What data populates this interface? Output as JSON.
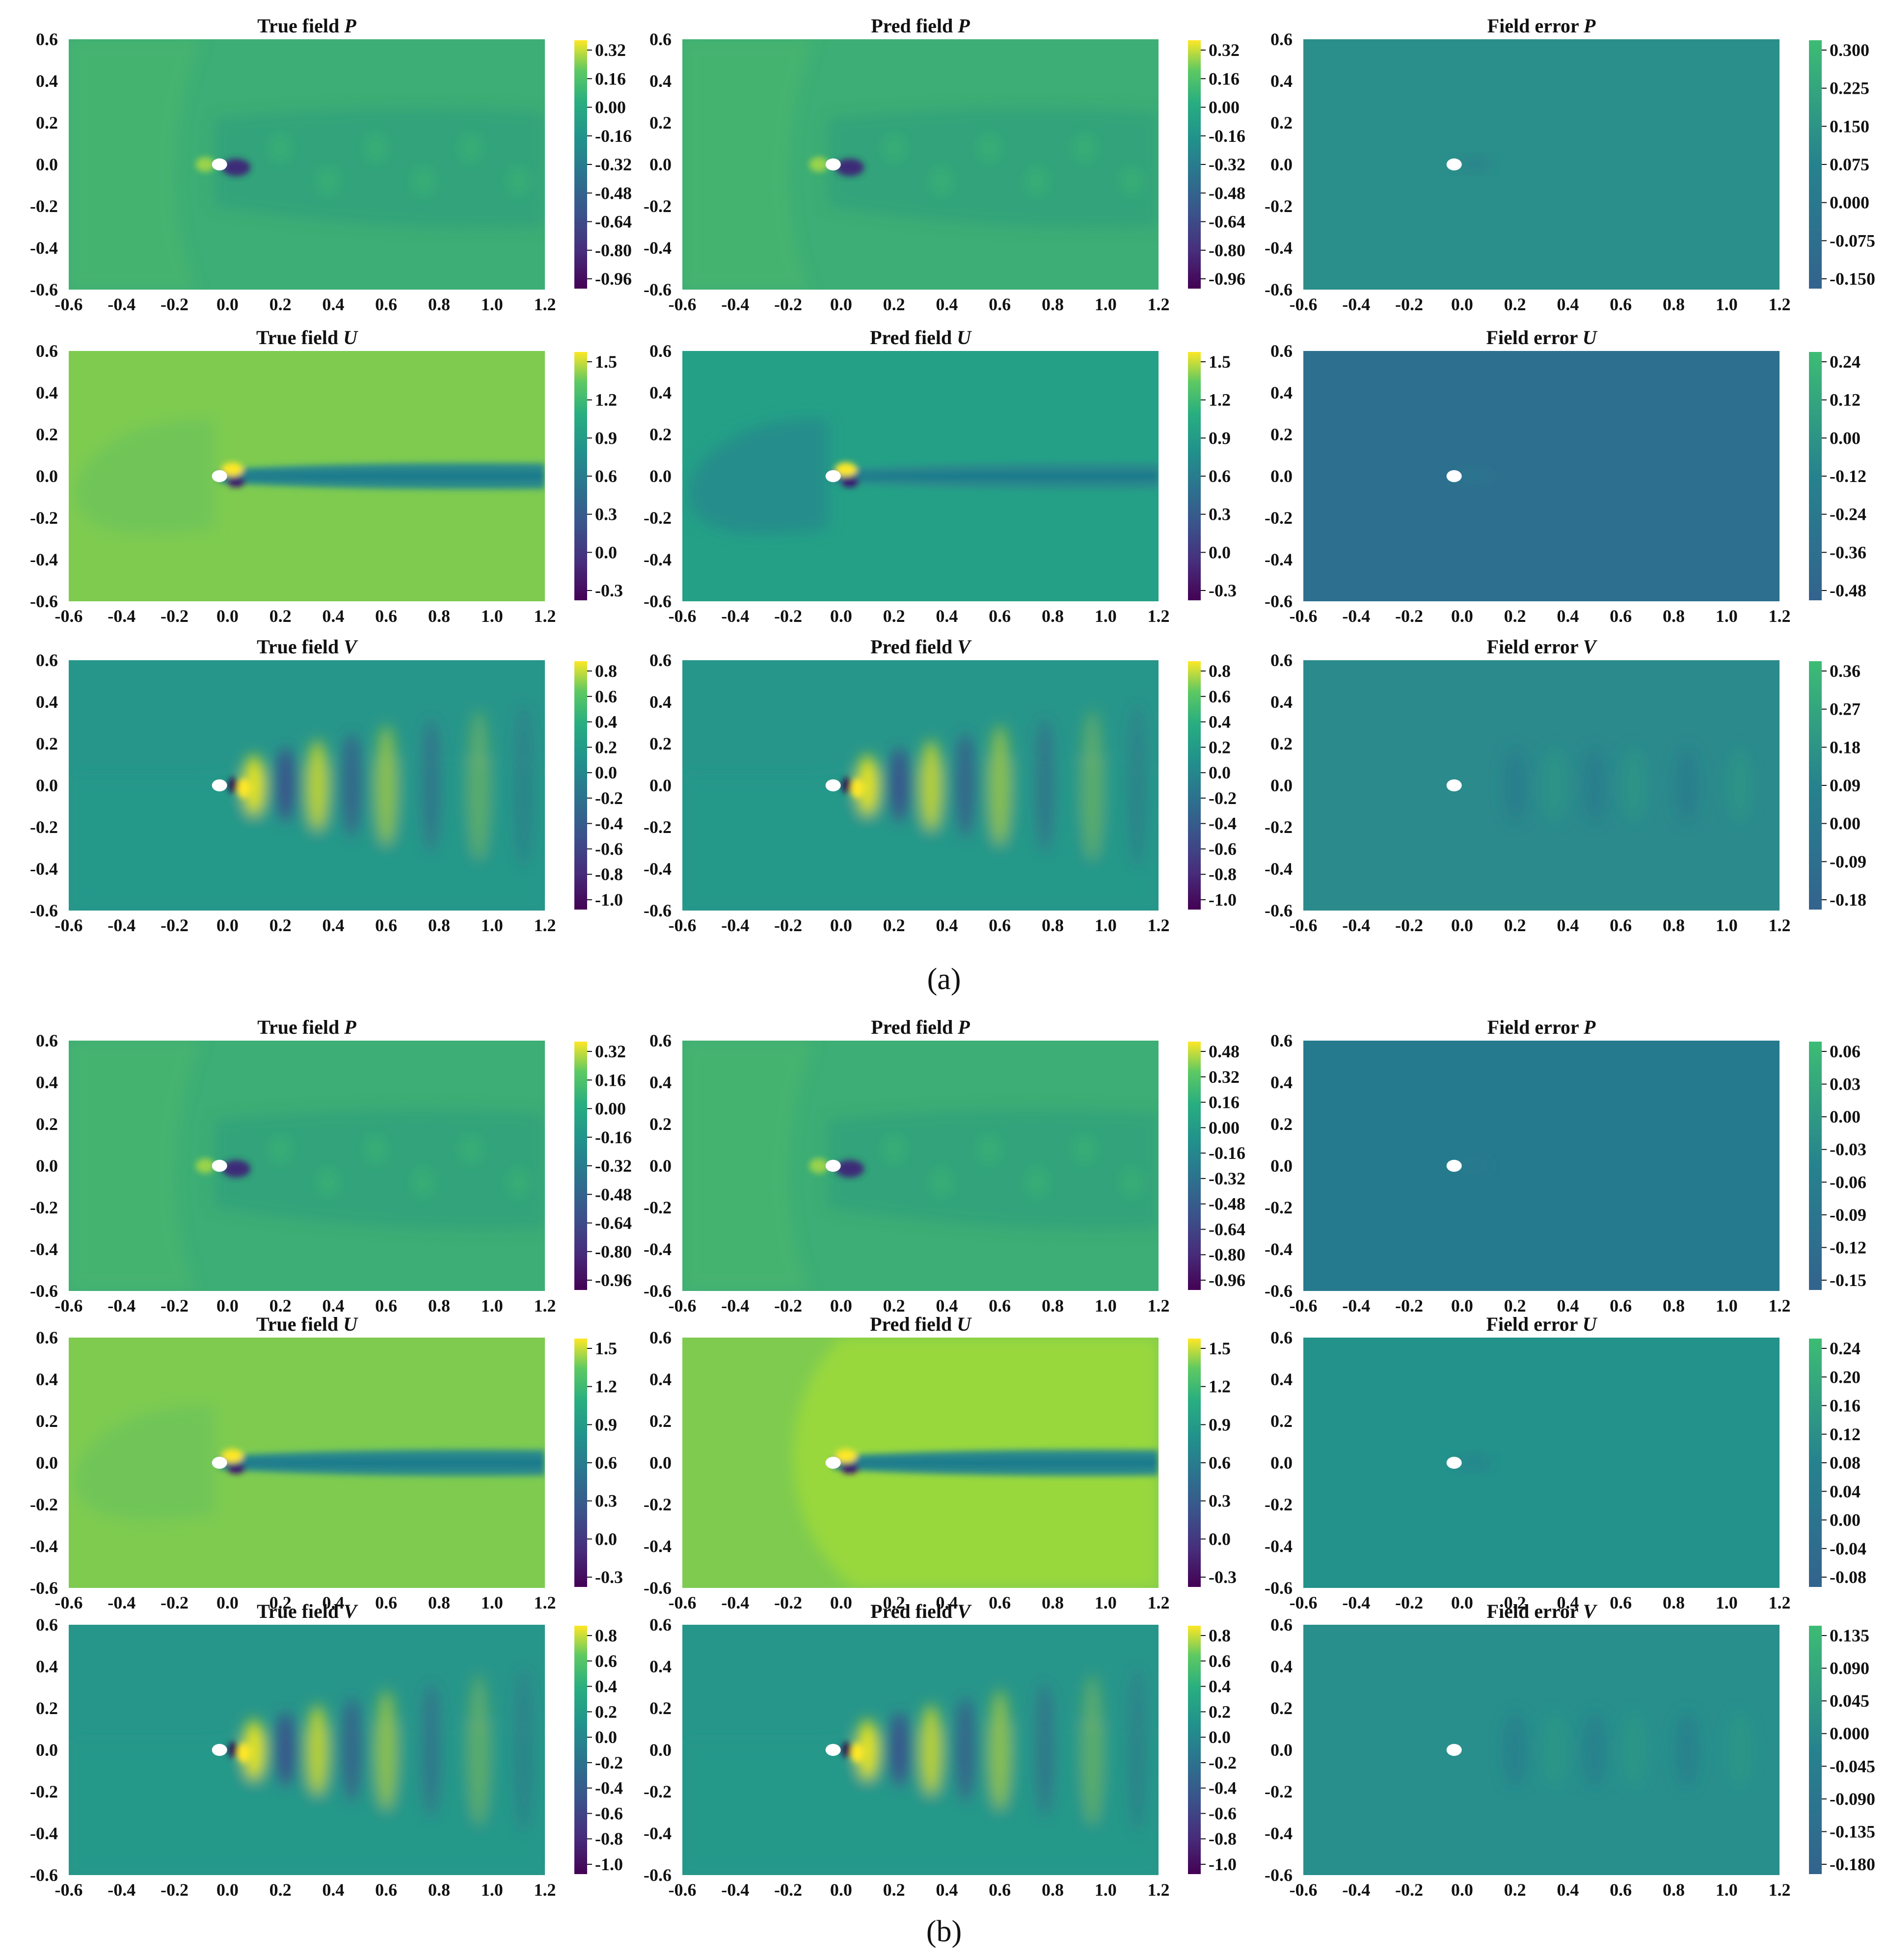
{
  "figure": {
    "part_labels": [
      "(a)",
      "(b)"
    ],
    "colors": {
      "cylinder": "#ffffff",
      "frame": "#111111"
    }
  },
  "chart_data": [
    {
      "type": "heatmap",
      "part": "a",
      "title": "True field",
      "variable": "P",
      "xticks": [
        "-0.6",
        "-0.4",
        "-0.2",
        "0.0",
        "0.2",
        "0.4",
        "0.6",
        "0.8",
        "1.0",
        "1.2"
      ],
      "yticks": [
        "0.6",
        "0.4",
        "0.2",
        "0.0",
        "-0.2",
        "-0.4",
        "-0.6"
      ],
      "xlim": [
        -0.6,
        1.2
      ],
      "ylim": [
        -0.6,
        0.6
      ],
      "colorbar_ticks": [
        "0.32",
        "0.16",
        "0.00",
        "-0.16",
        "-0.32",
        "-0.48",
        "-0.64",
        "-0.80",
        "-0.96"
      ],
      "colormap": "viridis",
      "background": "#3dae75",
      "pattern": "vortex_p"
    },
    {
      "type": "heatmap",
      "part": "a",
      "title": "Pred field",
      "variable": "P",
      "xticks": [
        "-0.6",
        "-0.4",
        "-0.2",
        "0.0",
        "0.2",
        "0.4",
        "0.6",
        "0.8",
        "1.0",
        "1.2"
      ],
      "yticks": [
        "0.6",
        "0.4",
        "0.2",
        "0.0",
        "-0.2",
        "-0.4",
        "-0.6"
      ],
      "xlim": [
        -0.6,
        1.2
      ],
      "ylim": [
        -0.6,
        0.6
      ],
      "colorbar_ticks": [
        "0.32",
        "0.16",
        "0.00",
        "-0.16",
        "-0.32",
        "-0.48",
        "-0.64",
        "-0.80",
        "-0.96"
      ],
      "colormap": "viridis",
      "background": "#3dae75",
      "pattern": "vortex_p"
    },
    {
      "type": "heatmap",
      "part": "a",
      "title": "Field error",
      "variable": "P",
      "xticks": [
        "-0.6",
        "-0.4",
        "-0.2",
        "0.0",
        "0.2",
        "0.4",
        "0.6",
        "0.8",
        "1.0",
        "1.2"
      ],
      "yticks": [
        "0.6",
        "0.4",
        "0.2",
        "0.0",
        "-0.2",
        "-0.4",
        "-0.6"
      ],
      "xlim": [
        -0.6,
        1.2
      ],
      "ylim": [
        -0.6,
        0.6
      ],
      "colorbar_ticks": [
        "0.300",
        "0.225",
        "0.150",
        "0.075",
        "0.000",
        "-0.075",
        "-0.150"
      ],
      "colormap": "error",
      "background": "#2a8f8a",
      "pattern": "error_small"
    },
    {
      "type": "heatmap",
      "part": "a",
      "title": "True field",
      "variable": "U",
      "xticks": [
        "-0.6",
        "-0.4",
        "-0.2",
        "0.0",
        "0.2",
        "0.4",
        "0.6",
        "0.8",
        "1.0",
        "1.2"
      ],
      "yticks": [
        "0.6",
        "0.4",
        "0.2",
        "0.0",
        "-0.2",
        "-0.4",
        "-0.6"
      ],
      "xlim": [
        -0.6,
        1.2
      ],
      "ylim": [
        -0.6,
        0.6
      ],
      "colorbar_ticks": [
        "1.5",
        "1.2",
        "0.9",
        "0.6",
        "0.3",
        "0.0",
        "-0.3"
      ],
      "colormap": "viridis",
      "background": "#7ecb50",
      "pattern": "wake_u"
    },
    {
      "type": "heatmap",
      "part": "a",
      "title": "Pred field",
      "variable": "U",
      "xticks": [
        "-0.6",
        "-0.4",
        "-0.2",
        "0.0",
        "0.2",
        "0.4",
        "0.6",
        "0.8",
        "1.0",
        "1.2"
      ],
      "yticks": [
        "0.6",
        "0.4",
        "0.2",
        "0.0",
        "-0.2",
        "-0.4",
        "-0.6"
      ],
      "xlim": [
        -0.6,
        1.2
      ],
      "ylim": [
        -0.6,
        0.6
      ],
      "colorbar_ticks": [
        "1.5",
        "1.2",
        "0.9",
        "0.6",
        "0.3",
        "0.0",
        "-0.3"
      ],
      "colormap": "viridis",
      "background": "#24a086",
      "pattern": "wake_u_pred"
    },
    {
      "type": "heatmap",
      "part": "a",
      "title": "Field error",
      "variable": "U",
      "xticks": [
        "-0.6",
        "-0.4",
        "-0.2",
        "0.0",
        "0.2",
        "0.4",
        "0.6",
        "0.8",
        "1.0",
        "1.2"
      ],
      "yticks": [
        "0.6",
        "0.4",
        "0.2",
        "0.0",
        "-0.2",
        "-0.4",
        "-0.6"
      ],
      "xlim": [
        -0.6,
        1.2
      ],
      "ylim": [
        -0.6,
        0.6
      ],
      "colorbar_ticks": [
        "0.24",
        "0.12",
        "0.00",
        "-0.12",
        "-0.24",
        "-0.36",
        "-0.48"
      ],
      "colormap": "error",
      "background": "#2d6f8e",
      "pattern": "error_small"
    },
    {
      "type": "heatmap",
      "part": "a",
      "title": "True field",
      "variable": "V",
      "xticks": [
        "-0.6",
        "-0.4",
        "-0.2",
        "0.0",
        "0.2",
        "0.4",
        "0.6",
        "0.8",
        "1.0",
        "1.2"
      ],
      "yticks": [
        "0.6",
        "0.4",
        "0.2",
        "0.0",
        "-0.2",
        "-0.4",
        "-0.6"
      ],
      "xlim": [
        -0.6,
        1.2
      ],
      "ylim": [
        -0.6,
        0.6
      ],
      "colorbar_ticks": [
        "0.8",
        "0.6",
        "0.4",
        "0.2",
        "0.0",
        "-0.2",
        "-0.4",
        "-0.6",
        "-0.8",
        "-1.0"
      ],
      "colormap": "viridis",
      "background": "#27968a",
      "pattern": "vortex_v"
    },
    {
      "type": "heatmap",
      "part": "a",
      "title": "Pred field",
      "variable": "V",
      "xticks": [
        "-0.6",
        "-0.4",
        "-0.2",
        "0.0",
        "0.2",
        "0.4",
        "0.6",
        "0.8",
        "1.0",
        "1.2"
      ],
      "yticks": [
        "0.6",
        "0.4",
        "0.2",
        "0.0",
        "-0.2",
        "-0.4",
        "-0.6"
      ],
      "xlim": [
        -0.6,
        1.2
      ],
      "ylim": [
        -0.6,
        0.6
      ],
      "colorbar_ticks": [
        "0.8",
        "0.6",
        "0.4",
        "0.2",
        "0.0",
        "-0.2",
        "-0.4",
        "-0.6",
        "-0.8",
        "-1.0"
      ],
      "colormap": "viridis",
      "background": "#27968a",
      "pattern": "vortex_v"
    },
    {
      "type": "heatmap",
      "part": "a",
      "title": "Field error",
      "variable": "V",
      "xticks": [
        "-0.6",
        "-0.4",
        "-0.2",
        "0.0",
        "0.2",
        "0.4",
        "0.6",
        "0.8",
        "1.0",
        "1.2"
      ],
      "yticks": [
        "0.6",
        "0.4",
        "0.2",
        "0.0",
        "-0.2",
        "-0.4",
        "-0.6"
      ],
      "xlim": [
        -0.6,
        1.2
      ],
      "ylim": [
        -0.6,
        0.6
      ],
      "colorbar_ticks": [
        "0.36",
        "0.27",
        "0.18",
        "0.09",
        "0.00",
        "-0.09",
        "-0.18"
      ],
      "colormap": "error",
      "background": "#2b8a8c",
      "pattern": "error_v"
    },
    {
      "type": "heatmap",
      "part": "b",
      "title": "True field",
      "variable": "P",
      "xticks": [
        "-0.6",
        "-0.4",
        "-0.2",
        "0.0",
        "0.2",
        "0.4",
        "0.6",
        "0.8",
        "1.0",
        "1.2"
      ],
      "yticks": [
        "0.6",
        "0.4",
        "0.2",
        "0.0",
        "-0.2",
        "-0.4",
        "-0.6"
      ],
      "xlim": [
        -0.6,
        1.2
      ],
      "ylim": [
        -0.6,
        0.6
      ],
      "colorbar_ticks": [
        "0.32",
        "0.16",
        "0.00",
        "-0.16",
        "-0.32",
        "-0.48",
        "-0.64",
        "-0.80",
        "-0.96"
      ],
      "colormap": "viridis",
      "background": "#3dae75",
      "pattern": "vortex_p"
    },
    {
      "type": "heatmap",
      "part": "b",
      "title": "Pred field",
      "variable": "P",
      "xticks": [
        "-0.6",
        "-0.4",
        "-0.2",
        "0.0",
        "0.2",
        "0.4",
        "0.6",
        "0.8",
        "1.0",
        "1.2"
      ],
      "yticks": [
        "0.6",
        "0.4",
        "0.2",
        "0.0",
        "-0.2",
        "-0.4",
        "-0.6"
      ],
      "xlim": [
        -0.6,
        1.2
      ],
      "ylim": [
        -0.6,
        0.6
      ],
      "colorbar_ticks": [
        "0.48",
        "0.32",
        "0.16",
        "0.00",
        "-0.16",
        "-0.32",
        "-0.48",
        "-0.64",
        "-0.80",
        "-0.96"
      ],
      "colormap": "viridis",
      "background": "#3dae75",
      "pattern": "vortex_p"
    },
    {
      "type": "heatmap",
      "part": "b",
      "title": "Field error",
      "variable": "P",
      "xticks": [
        "-0.6",
        "-0.4",
        "-0.2",
        "0.0",
        "0.2",
        "0.4",
        "0.6",
        "0.8",
        "1.0",
        "1.2"
      ],
      "yticks": [
        "0.6",
        "0.4",
        "0.2",
        "0.0",
        "-0.2",
        "-0.4",
        "-0.6"
      ],
      "xlim": [
        -0.6,
        1.2
      ],
      "ylim": [
        -0.6,
        0.6
      ],
      "colorbar_ticks": [
        "0.06",
        "0.03",
        "0.00",
        "-0.03",
        "-0.06",
        "-0.09",
        "-0.12",
        "-0.15"
      ],
      "colormap": "error",
      "background": "#267a8d",
      "pattern": "error_small"
    },
    {
      "type": "heatmap",
      "part": "b",
      "title": "True field",
      "variable": "U",
      "xticks": [
        "-0.6",
        "-0.4",
        "-0.2",
        "0.0",
        "0.2",
        "0.4",
        "0.6",
        "0.8",
        "1.0",
        "1.2"
      ],
      "yticks": [
        "0.6",
        "0.4",
        "0.2",
        "0.0",
        "-0.2",
        "-0.4",
        "-0.6"
      ],
      "xlim": [
        -0.6,
        1.2
      ],
      "ylim": [
        -0.6,
        0.6
      ],
      "colorbar_ticks": [
        "1.5",
        "1.2",
        "0.9",
        "0.6",
        "0.3",
        "0.0",
        "-0.3"
      ],
      "colormap": "viridis",
      "background": "#7ecb50",
      "pattern": "wake_u"
    },
    {
      "type": "heatmap",
      "part": "b",
      "title": "Pred field",
      "variable": "U",
      "xticks": [
        "-0.6",
        "-0.4",
        "-0.2",
        "0.0",
        "0.2",
        "0.4",
        "0.6",
        "0.8",
        "1.0",
        "1.2"
      ],
      "yticks": [
        "0.6",
        "0.4",
        "0.2",
        "0.0",
        "-0.2",
        "-0.4",
        "-0.6"
      ],
      "xlim": [
        -0.6,
        1.2
      ],
      "ylim": [
        -0.6,
        0.6
      ],
      "colorbar_ticks": [
        "1.5",
        "1.2",
        "0.9",
        "0.6",
        "0.3",
        "0.0",
        "-0.3"
      ],
      "colormap": "viridis",
      "background": "#7ecb50",
      "pattern": "wake_u_b"
    },
    {
      "type": "heatmap",
      "part": "b",
      "title": "Field error",
      "variable": "U",
      "xticks": [
        "-0.6",
        "-0.4",
        "-0.2",
        "0.0",
        "0.2",
        "0.4",
        "0.6",
        "0.8",
        "1.0",
        "1.2"
      ],
      "yticks": [
        "0.6",
        "0.4",
        "0.2",
        "0.0",
        "-0.2",
        "-0.4",
        "-0.6"
      ],
      "xlim": [
        -0.6,
        1.2
      ],
      "ylim": [
        -0.6,
        0.6
      ],
      "colorbar_ticks": [
        "0.24",
        "0.20",
        "0.16",
        "0.12",
        "0.08",
        "0.04",
        "0.00",
        "-0.04",
        "-0.08"
      ],
      "colormap": "error",
      "background": "#22928b",
      "pattern": "error_small"
    },
    {
      "type": "heatmap",
      "part": "b",
      "title": "True field",
      "variable": "V",
      "xticks": [
        "-0.6",
        "-0.4",
        "-0.2",
        "0.0",
        "0.2",
        "0.4",
        "0.6",
        "0.8",
        "1.0",
        "1.2"
      ],
      "yticks": [
        "0.6",
        "0.4",
        "0.2",
        "0.0",
        "-0.2",
        "-0.4",
        "-0.6"
      ],
      "xlim": [
        -0.6,
        1.2
      ],
      "ylim": [
        -0.6,
        0.6
      ],
      "colorbar_ticks": [
        "0.8",
        "0.6",
        "0.4",
        "0.2",
        "0.0",
        "-0.2",
        "-0.4",
        "-0.6",
        "-0.8",
        "-1.0"
      ],
      "colormap": "viridis",
      "background": "#27968a",
      "pattern": "vortex_v"
    },
    {
      "type": "heatmap",
      "part": "b",
      "title": "Pred field",
      "variable": "V",
      "xticks": [
        "-0.6",
        "-0.4",
        "-0.2",
        "0.0",
        "0.2",
        "0.4",
        "0.6",
        "0.8",
        "1.0",
        "1.2"
      ],
      "yticks": [
        "0.6",
        "0.4",
        "0.2",
        "0.0",
        "-0.2",
        "-0.4",
        "-0.6"
      ],
      "xlim": [
        -0.6,
        1.2
      ],
      "ylim": [
        -0.6,
        0.6
      ],
      "colorbar_ticks": [
        "0.8",
        "0.6",
        "0.4",
        "0.2",
        "0.0",
        "-0.2",
        "-0.4",
        "-0.6",
        "-0.8",
        "-1.0"
      ],
      "colormap": "viridis",
      "background": "#27968a",
      "pattern": "vortex_v"
    },
    {
      "type": "heatmap",
      "part": "b",
      "title": "Field error",
      "variable": "V",
      "xticks": [
        "-0.6",
        "-0.4",
        "-0.2",
        "0.0",
        "0.2",
        "0.4",
        "0.6",
        "0.8",
        "1.0",
        "1.2"
      ],
      "yticks": [
        "0.6",
        "0.4",
        "0.2",
        "0.0",
        "-0.2",
        "-0.4",
        "-0.6"
      ],
      "xlim": [
        -0.6,
        1.2
      ],
      "ylim": [
        -0.6,
        0.6
      ],
      "colorbar_ticks": [
        "0.135",
        "0.090",
        "0.045",
        "0.000",
        "-0.045",
        "-0.090",
        "-0.135",
        "-0.180"
      ],
      "colormap": "error",
      "background": "#288f8c",
      "pattern": "error_v"
    }
  ]
}
